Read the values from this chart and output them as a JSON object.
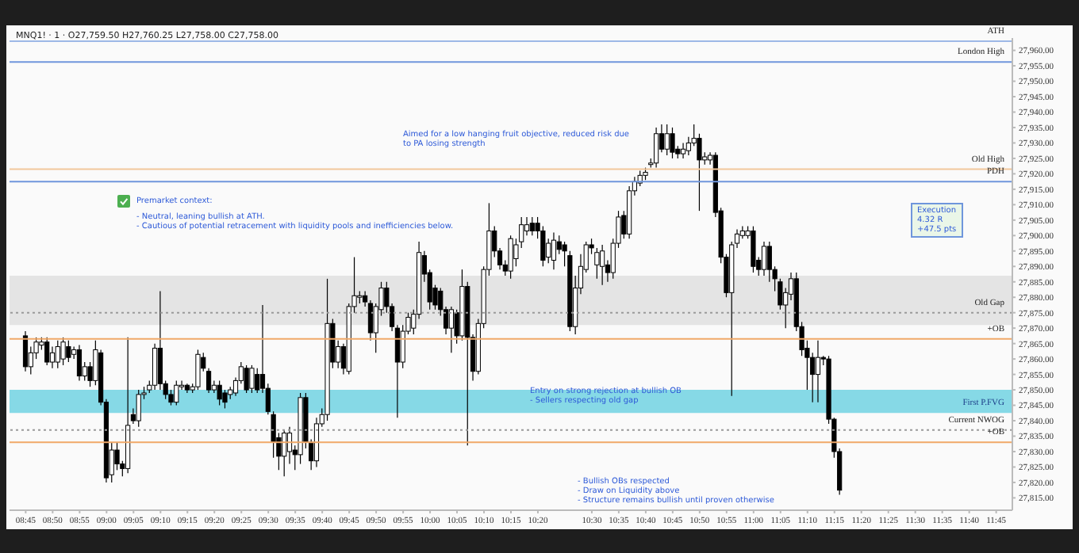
{
  "chart_data": {
    "type": "candlestick",
    "subtitle": "MNQ1! · 1 · O27,759.50 H27,760.25 L27,758.00 C27,758.00",
    "x": [
      8.75,
      8.7667,
      8.7833,
      8.8,
      8.8167,
      8.8333,
      8.85,
      8.8667,
      8.8833,
      8.9,
      8.9167,
      8.9333,
      8.95,
      8.9667,
      8.9833,
      9,
      9.0167,
      9.0333,
      9.05,
      9.0667,
      9.0833,
      9.1,
      9.1167,
      9.1333,
      9.15,
      9.1667,
      9.1833,
      9.2,
      9.2167,
      9.2333,
      9.25,
      9.2667,
      9.2833,
      9.3,
      9.3167,
      9.3333,
      9.35,
      9.3667,
      9.3833,
      9.4,
      9.4167,
      9.4333,
      9.45,
      9.4667,
      9.4833,
      9.5,
      9.5167,
      9.5333,
      9.55,
      9.5667,
      9.5833,
      9.6,
      9.6167,
      9.6333,
      9.65,
      9.6667,
      9.6833,
      9.7,
      9.7167,
      9.7333,
      9.75,
      9.7667,
      9.7833,
      9.8,
      9.8167,
      9.8333,
      9.85,
      9.8667,
      9.8833,
      9.9,
      9.9167,
      9.9333,
      9.95,
      9.9667,
      9.9833,
      10,
      10.0167,
      10.0333,
      10.05,
      10.0667,
      10.0833,
      10.1,
      10.1167,
      10.1333,
      10.15,
      10.1667,
      10.1833,
      10.2,
      10.2167,
      10.2333,
      10.25,
      10.2667,
      10.2833,
      10.3,
      10.3167,
      10.3333,
      10.35,
      10.3667,
      10.3833,
      10.4,
      10.4167,
      10.4333,
      10.45,
      10.4667,
      10.4833,
      10.5,
      10.5167,
      10.5333,
      10.55,
      10.5667,
      10.5833,
      10.6,
      10.6167,
      10.6333,
      10.65,
      10.6667,
      10.6833,
      10.7,
      10.7167,
      10.7333,
      10.75,
      10.7667,
      10.7833,
      10.8,
      10.8167,
      10.8333,
      10.85,
      10.8667,
      10.8833,
      10.9,
      10.9167,
      10.9333,
      10.95,
      10.9667,
      10.9833,
      11,
      11.0167,
      11.0333,
      11.05,
      11.0667,
      11.0833,
      11.1,
      11.1167,
      11.1333,
      11.15,
      11.1667,
      11.1833,
      11.2,
      11.2167,
      11.2333,
      11.25,
      11.2667
    ],
    "series": [
      {
        "color": "#000000",
        "ohlc": [
          [
            27867.5,
            27869,
            27856,
            27857.5
          ],
          [
            27857.5,
            27864,
            27855,
            27862
          ],
          [
            27862,
            27867,
            27860,
            27865.5
          ],
          [
            27864.5,
            27867,
            27863,
            27865.5
          ],
          [
            27865.5,
            27867,
            27858,
            27859
          ],
          [
            27859,
            27864,
            27857,
            27862
          ],
          [
            27859,
            27866,
            27857,
            27864
          ],
          [
            27860,
            27867,
            27858,
            27865.5
          ],
          [
            27864,
            27866,
            27859,
            27860.5
          ],
          [
            27861.5,
            27864,
            27860,
            27863
          ],
          [
            27863,
            27864.5,
            27853,
            27854.5
          ],
          [
            27854.5,
            27859,
            27853,
            27857.5
          ],
          [
            27857.5,
            27859,
            27851,
            27853
          ],
          [
            27853,
            27866,
            27851.5,
            27863
          ],
          [
            27862,
            27863,
            27845,
            27846
          ],
          [
            27846,
            27847,
            27820,
            27821.5
          ],
          [
            27822.5,
            27833,
            27820,
            27830.5
          ],
          [
            27830.5,
            27833,
            27824,
            27826
          ],
          [
            27826,
            27827,
            27822,
            27824.5
          ],
          [
            27824.5,
            27867,
            27823,
            27838.5
          ],
          [
            27842,
            27844,
            27839,
            27840
          ],
          [
            27840,
            27850,
            27838,
            27848.5
          ],
          [
            27848.5,
            27851,
            27847,
            27849
          ],
          [
            27850,
            27853,
            27849,
            27851.5
          ],
          [
            27851.5,
            27865,
            27850,
            27863.5
          ],
          [
            27863.5,
            27882,
            27850,
            27852
          ],
          [
            27852,
            27853,
            27847,
            27848.5
          ],
          [
            27848.5,
            27850,
            27845,
            27846
          ],
          [
            27846,
            27853,
            27845,
            27851.5
          ],
          [
            27851,
            27853,
            27850,
            27851.5
          ],
          [
            27851.5,
            27852,
            27849,
            27850
          ],
          [
            27850,
            27852,
            27849,
            27851
          ],
          [
            27851,
            27863,
            27850,
            27861.5
          ],
          [
            27860.5,
            27862,
            27856,
            27857
          ],
          [
            27856,
            27857,
            27849,
            27850
          ],
          [
            27850,
            27853,
            27849,
            27851.5
          ],
          [
            27851.5,
            27853,
            27845,
            27847
          ],
          [
            27849,
            27850,
            27844,
            27846
          ],
          [
            27848.5,
            27851,
            27847,
            27850
          ],
          [
            27849,
            27854,
            27848,
            27853
          ],
          [
            27853,
            27859,
            27852,
            27857.5
          ],
          [
            27857,
            27858,
            27849,
            27850
          ],
          [
            27850.5,
            27858,
            27849,
            27857
          ],
          [
            27855,
            27857,
            27849,
            27850
          ],
          [
            27855,
            27877.5,
            27849,
            27850.5
          ],
          [
            27850.5,
            27852,
            27842,
            27843
          ],
          [
            27842,
            27843,
            27828,
            27833
          ],
          [
            27834.5,
            27836,
            27824,
            27828.5
          ],
          [
            27828.5,
            27837,
            27822,
            27836
          ],
          [
            27830,
            27838,
            27826,
            27836
          ],
          [
            27830.5,
            27832,
            27824,
            27829
          ],
          [
            27829,
            27849,
            27826,
            27847.5
          ],
          [
            27847.5,
            27849,
            27831,
            27833
          ],
          [
            27833,
            27834,
            27824,
            27827
          ],
          [
            27827,
            27841,
            27825,
            27839
          ],
          [
            27839,
            27844,
            27838,
            27842
          ],
          [
            27842,
            27886,
            27840,
            27871.5
          ],
          [
            27871.5,
            27873,
            27857,
            27859
          ],
          [
            27859,
            27866,
            27857,
            27864
          ],
          [
            27864,
            27865,
            27855,
            27857
          ],
          [
            27856,
            27878,
            27855,
            27877
          ],
          [
            27877,
            27893,
            27875,
            27880.5
          ],
          [
            27880,
            27882,
            27878,
            27880.5
          ],
          [
            27880.5,
            27882,
            27877,
            27878.5
          ],
          [
            27878,
            27879,
            27866,
            27868.5
          ],
          [
            27868.5,
            27878,
            27862,
            27877
          ],
          [
            27876,
            27885,
            27874,
            27883
          ],
          [
            27883,
            27885,
            27875,
            27877
          ],
          [
            27877,
            27878,
            27869,
            27870.5
          ],
          [
            27870,
            27871,
            27841,
            27859
          ],
          [
            27859,
            27871,
            27857,
            27869
          ],
          [
            27869,
            27875,
            27868,
            27873.5
          ],
          [
            27870,
            27876,
            27868,
            27874.5
          ],
          [
            27874.5,
            27898,
            27873,
            27894.5
          ],
          [
            27893.5,
            27895,
            27885,
            27887.5
          ],
          [
            27888,
            27889,
            27876,
            27878.5
          ],
          [
            27883,
            27884,
            27876,
            27877.5
          ],
          [
            27882,
            27883,
            27874,
            27876
          ],
          [
            27876,
            27877,
            27868,
            27870
          ],
          [
            27870,
            27877,
            27862,
            27876
          ],
          [
            27875,
            27876,
            27865,
            27867.5
          ],
          [
            27867.5,
            27889,
            27866,
            27883.5
          ],
          [
            27883.5,
            27885,
            27832,
            27867
          ],
          [
            27867,
            27868,
            27853,
            27856
          ],
          [
            27856,
            27873,
            27855,
            27871.5
          ],
          [
            27871.5,
            27890,
            27870,
            27889
          ],
          [
            27889,
            27910.5,
            27887,
            27901.5
          ],
          [
            27901.5,
            27903,
            27893,
            27895
          ],
          [
            27895,
            27896,
            27889,
            27890.5
          ],
          [
            27890.5,
            27892,
            27887,
            27888.5
          ],
          [
            27888.5,
            27900,
            27886,
            27899
          ],
          [
            27892.5,
            27899,
            27890,
            27897
          ],
          [
            27898,
            27906,
            27896,
            27903.5
          ],
          [
            27901.5,
            27906,
            27900,
            27903.5
          ],
          [
            27904,
            27906,
            27900,
            27901.5
          ],
          [
            27904,
            27906,
            27899,
            27901.5
          ],
          [
            27901.5,
            27903,
            27890,
            27892
          ],
          [
            27893,
            27899,
            27891,
            27897.5
          ],
          [
            27892,
            27901,
            27889,
            27898.5
          ],
          [
            27898,
            27900,
            27894,
            27895.5
          ],
          [
            27897,
            27898,
            27890,
            27895
          ],
          [
            27893.5,
            27895,
            27869,
            27870.5
          ],
          [
            27870.5,
            27887,
            27868,
            27883
          ],
          [
            27883,
            27894,
            27881,
            27890
          ],
          [
            27889,
            27898,
            27888,
            27897
          ],
          [
            27897,
            27899,
            27894,
            27896
          ],
          [
            27890.5,
            27896,
            27886,
            27894.5
          ],
          [
            27890,
            27897,
            27884,
            27895
          ],
          [
            27890.5,
            27892,
            27885,
            27888
          ],
          [
            27888,
            27899,
            27886,
            27897.5
          ],
          [
            27897.5,
            27908,
            27896,
            27906
          ],
          [
            27906.5,
            27908,
            27899,
            27900.5
          ],
          [
            27900.5,
            27916,
            27899,
            27914.5
          ],
          [
            27914.5,
            27919,
            27913,
            27917.5
          ],
          [
            27917,
            27921,
            27916,
            27919.5
          ],
          [
            27919.5,
            27922,
            27918,
            27920.5
          ],
          [
            27923,
            27925,
            27922,
            27923.5
          ],
          [
            27923.5,
            27935,
            27922,
            27933
          ],
          [
            27933,
            27936,
            27927,
            27928
          ],
          [
            27928,
            27936,
            27926,
            27933
          ],
          [
            27933,
            27935,
            27925,
            27927
          ],
          [
            27928,
            27929,
            27925,
            27926.5
          ],
          [
            27926.5,
            27930,
            27925,
            27928
          ],
          [
            27927.5,
            27932,
            27926,
            27930
          ],
          [
            27930,
            27936,
            27929,
            27931.5
          ],
          [
            27931.5,
            27933,
            27908,
            27924.5
          ],
          [
            27924.5,
            27927,
            27923,
            27925.5
          ],
          [
            27924.5,
            27927,
            27923,
            27926
          ],
          [
            27926,
            27927,
            27906,
            27907.5
          ],
          [
            27908,
            27909,
            27891,
            27893
          ],
          [
            27893,
            27894,
            27880,
            27881.5
          ],
          [
            27881.5,
            27898,
            27848,
            27897
          ],
          [
            27897.5,
            27902,
            27896,
            27900.5
          ],
          [
            27900,
            27903,
            27899,
            27901.5
          ],
          [
            27900,
            27903,
            27899,
            27901.5
          ],
          [
            27901.5,
            27903,
            27888,
            27890
          ],
          [
            27892,
            27893,
            27887,
            27889
          ],
          [
            27889,
            27898,
            27887,
            27896.5
          ],
          [
            27896.5,
            27898,
            27885,
            27889
          ],
          [
            27889,
            27890,
            27882,
            27886
          ],
          [
            27885,
            27886,
            27876,
            27877.5
          ],
          [
            27877.5,
            27883,
            27870,
            27881.5
          ],
          [
            27881,
            27888,
            27879,
            27886
          ],
          [
            27886,
            27888,
            27869,
            27870.5
          ],
          [
            27870.5,
            27872,
            27861,
            27863
          ],
          [
            27863.5,
            27866,
            27850,
            27860.5
          ],
          [
            27860.5,
            27862,
            27846,
            27855
          ],
          [
            27855,
            27866,
            27846,
            27860.5
          ],
          [
            27860.5,
            27861,
            27858,
            27860
          ],
          [
            27860,
            27861,
            27839,
            27840.5
          ],
          [
            27840.5,
            27841,
            27828,
            27830
          ],
          [
            27830,
            27831,
            27816,
            27817.5
          ]
        ]
      }
    ],
    "xlim": [
      8.7,
      11.8
    ],
    "xticks": [
      {
        "value": 8.75,
        "label": "08:45"
      },
      {
        "value": 8.8333,
        "label": "08:50"
      },
      {
        "value": 8.9167,
        "label": "08:55"
      },
      {
        "value": 9,
        "label": "09:00"
      },
      {
        "value": 9.0833,
        "label": "09:05"
      },
      {
        "value": 9.1667,
        "label": "09:10"
      },
      {
        "value": 9.25,
        "label": "09:15"
      },
      {
        "value": 9.3333,
        "label": "09:20"
      },
      {
        "value": 9.4167,
        "label": "09:25"
      },
      {
        "value": 9.5,
        "label": "09:30"
      },
      {
        "value": 9.5833,
        "label": "09:35"
      },
      {
        "value": 9.6667,
        "label": "09:40"
      },
      {
        "value": 9.75,
        "label": "09:45"
      },
      {
        "value": 9.8333,
        "label": "09:50"
      },
      {
        "value": 9.9167,
        "label": "09:55"
      },
      {
        "value": 10,
        "label": "10:00"
      },
      {
        "value": 10.0833,
        "label": "10:05"
      },
      {
        "value": 10.1667,
        "label": "10:10"
      },
      {
        "value": 10.25,
        "label": "10:15"
      },
      {
        "value": 10.3333,
        "label": "10:20"
      },
      {
        "value": 10.5,
        "label": "10:30"
      },
      {
        "value": 10.5833,
        "label": "10:35"
      },
      {
        "value": 10.6667,
        "label": "10:40"
      },
      {
        "value": 10.75,
        "label": "10:45"
      },
      {
        "value": 10.8333,
        "label": "10:50"
      },
      {
        "value": 10.9167,
        "label": "10:55"
      },
      {
        "value": 11,
        "label": "11:00"
      },
      {
        "value": 11.0833,
        "label": "11:05"
      },
      {
        "value": 11.1667,
        "label": "11:10"
      },
      {
        "value": 11.25,
        "label": "11:15"
      },
      {
        "value": 11.3333,
        "label": "11:20"
      },
      {
        "value": 11.4167,
        "label": "11:25"
      },
      {
        "value": 11.5,
        "label": "11:30"
      },
      {
        "value": 11.5833,
        "label": "11:35"
      },
      {
        "value": 11.6667,
        "label": "11:40"
      },
      {
        "value": 11.75,
        "label": "11:45"
      }
    ],
    "ylim": [
      27811,
      27964
    ],
    "yticks": [
      {
        "value": 27815,
        "label": "27,815.00"
      },
      {
        "value": 27820,
        "label": "27,820.00"
      },
      {
        "value": 27825,
        "label": "27,825.00"
      },
      {
        "value": 27830,
        "label": "27,830.00"
      },
      {
        "value": 27835,
        "label": "27,835.00"
      },
      {
        "value": 27840,
        "label": "27,840.00"
      },
      {
        "value": 27845,
        "label": "27,845.00"
      },
      {
        "value": 27850,
        "label": "27,850.00"
      },
      {
        "value": 27855,
        "label": "27,855.00"
      },
      {
        "value": 27860,
        "label": "27,860.00"
      },
      {
        "value": 27865,
        "label": "27,865.00"
      },
      {
        "value": 27870,
        "label": "27,870.00"
      },
      {
        "value": 27875,
        "label": "27,875.00"
      },
      {
        "value": 27880,
        "label": "27,880.00"
      },
      {
        "value": 27885,
        "label": "27,885.00"
      },
      {
        "value": 27890,
        "label": "27,890.00"
      },
      {
        "value": 27895,
        "label": "27,895.00"
      },
      {
        "value": 27900,
        "label": "27,900.00"
      },
      {
        "value": 27905,
        "label": "27,905.00"
      },
      {
        "value": 27910,
        "label": "27,910.00"
      },
      {
        "value": 27915,
        "label": "27,915.00"
      },
      {
        "value": 27920,
        "label": "27,920.00"
      },
      {
        "value": 27925,
        "label": "27,925.00"
      },
      {
        "value": 27930,
        "label": "27,930.00"
      },
      {
        "value": 27935,
        "label": "27,935.00"
      },
      {
        "value": 27940,
        "label": "27,940.00"
      },
      {
        "value": 27945,
        "label": "27,945.00"
      },
      {
        "value": 27950,
        "label": "27,950.00"
      },
      {
        "value": 27955,
        "label": "27,955.00"
      },
      {
        "value": 27960,
        "label": "27,960.00"
      }
    ],
    "ref_lines": [
      {
        "axis": "y",
        "value": 27963,
        "label": "ATH",
        "color": "#9db8e6"
      },
      {
        "axis": "y",
        "value": 27956.25,
        "label": "London High",
        "color": "#6f96dc"
      },
      {
        "axis": "y",
        "value": 27921.5,
        "label": "Old High",
        "color": "#f2c79b"
      },
      {
        "axis": "y",
        "value": 27917.5,
        "label": "PDH",
        "color": "#6f96dc"
      },
      {
        "axis": "y",
        "value": 27875,
        "label": "Old Gap",
        "color": "#9a9a9a",
        "line_style": "dotted"
      },
      {
        "axis": "y",
        "value": 27866.5,
        "label": "+OB",
        "color": "#f0a868"
      },
      {
        "axis": "y",
        "value": 27837,
        "label": "Current NWOG",
        "color": "#9a9a9a",
        "line_style": "dotted"
      },
      {
        "axis": "y",
        "value": 27833,
        "label": "+OB",
        "color": "#f0a868"
      }
    ],
    "bands": [
      {
        "axis": "y",
        "from": 27871,
        "to": 27887,
        "color": "#e4e4e4"
      },
      {
        "axis": "y",
        "from": 27842.5,
        "to": 27850,
        "label": "First P.FVG",
        "color": "#86d9e6"
      }
    ],
    "annotations": [
      "Aimed for a low hanging fruit objective, reduced risk due\nto PA losing strength",
      "Premarket context:\n\n- Neutral, leaning bullish at ATH.\n- Cautious of potential retracement with liquidity pools and inefficiencies below.",
      "Execution\n4.32 R\n+47.5 pts",
      "Entry on strong rejection at bullish OB\n- Sellers respecting old gap",
      "- Bullish OBs respected\n- Draw on Liquidity above\n- Structure remains bullish until proven otherwise"
    ]
  }
}
